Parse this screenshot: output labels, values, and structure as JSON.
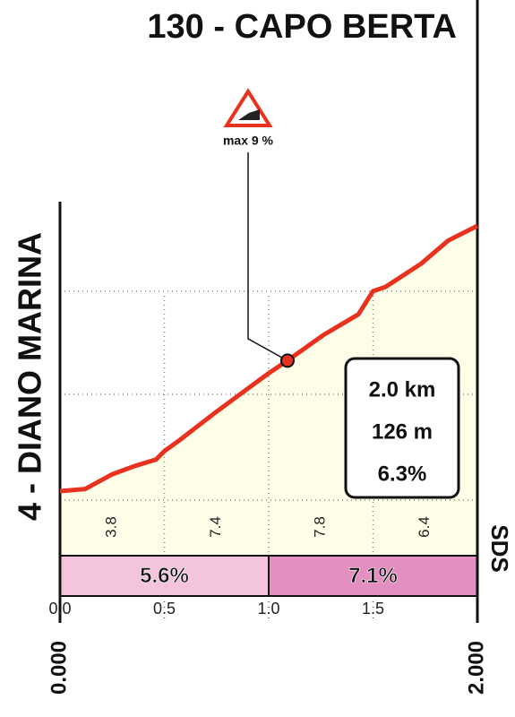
{
  "chart_data": {
    "type": "line",
    "title": "130 - CAPO BERTA",
    "start_label": "4 - DIANO MARINA",
    "logo": "SDS",
    "x": [
      0,
      0.12,
      0.25,
      0.36,
      0.46,
      0.5,
      0.57,
      0.74,
      0.89,
      1.0,
      1.09,
      1.26,
      1.43,
      1.5,
      1.56,
      1.73,
      1.86,
      2.0
    ],
    "values": [
      0,
      1,
      8,
      12,
      15,
      19,
      24,
      37,
      48,
      56,
      62,
      74,
      84,
      95,
      97,
      108,
      119,
      126
    ],
    "color": "#e8321e",
    "fill": "#fdfde8",
    "xlim": [
      0,
      2
    ],
    "ylim": [
      0,
      126
    ],
    "xticks": [
      {
        "value": 0,
        "label": "0.0"
      },
      0.5,
      {
        "value": 1,
        "label": "1.0"
      },
      1.5
    ],
    "grid": true,
    "max_gradient": {
      "label": "max 9 %",
      "x": 1.09
    },
    "segment_gradients": {
      "bins": [
        0,
        0.5,
        1,
        1.5,
        2
      ],
      "values": [
        3.8,
        7.4,
        7.8,
        6.4
      ]
    },
    "km_segments": {
      "bins": [
        0,
        1,
        2
      ],
      "values": [
        5.6,
        7.1
      ],
      "value_labels": [
        "5.6%",
        "7.1%"
      ],
      "colors": [
        "#f4c4dc",
        "#e38fc1"
      ]
    },
    "stats": [
      "2.0 km",
      "126 m",
      "6.3%"
    ],
    "distance_labels": [
      {
        "value": 0,
        "label": "0.000"
      },
      {
        "value": 2,
        "label": "2.000"
      }
    ]
  }
}
